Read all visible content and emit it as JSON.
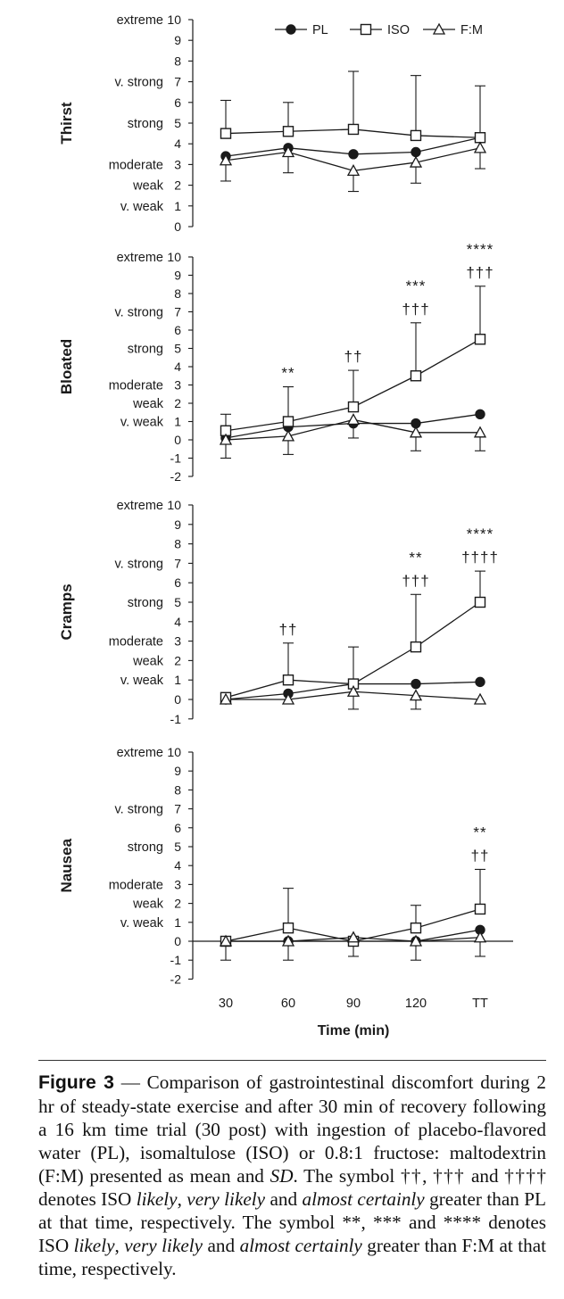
{
  "chart_data": {
    "type": "line",
    "categories": [
      "30",
      "60",
      "90",
      "120",
      "TT"
    ],
    "xlabel": "Time (min)",
    "legend": [
      {
        "key": "PL",
        "label": "PL",
        "marker": "filled-circle"
      },
      {
        "key": "ISO",
        "label": "ISO",
        "marker": "open-square"
      },
      {
        "key": "FM",
        "label": "F:M",
        "marker": "open-triangle"
      }
    ],
    "legend_position": "top",
    "scale_labels": {
      "10": "extreme",
      "7": "v. strong",
      "5": "strong",
      "3": "moderate",
      "2": "weak",
      "1": "v. weak"
    },
    "panels": [
      {
        "ylabel": "Thirst",
        "ylim": [
          0,
          10
        ],
        "series": [
          {
            "key": "PL",
            "values": [
              3.4,
              3.8,
              3.5,
              3.6,
              4.3
            ],
            "sd_upper": [
              0,
              0,
              0,
              0,
              0
            ],
            "sd_lower": [
              0,
              0,
              0,
              0,
              0
            ]
          },
          {
            "key": "ISO",
            "values": [
              4.5,
              4.6,
              4.7,
              4.4,
              4.3
            ],
            "sd_upper": [
              1.6,
              1.4,
              2.8,
              2.9,
              2.5
            ],
            "sd_lower": [
              0,
              0,
              0,
              0,
              0
            ]
          },
          {
            "key": "FM",
            "values": [
              3.2,
              3.6,
              2.7,
              3.1,
              3.8
            ],
            "sd_upper": [
              0,
              0,
              0,
              0,
              0
            ],
            "sd_lower": [
              1.0,
              1.0,
              1.0,
              1.0,
              1.0
            ]
          }
        ],
        "annotations": []
      },
      {
        "ylabel": "Bloated",
        "ylim": [
          -2,
          10
        ],
        "series": [
          {
            "key": "PL",
            "values": [
              0.1,
              0.7,
              0.9,
              0.9,
              1.4
            ],
            "sd_upper": [
              0,
              0,
              0,
              0,
              0
            ],
            "sd_lower": [
              0,
              0,
              0.8,
              0,
              0
            ]
          },
          {
            "key": "ISO",
            "values": [
              0.5,
              1.0,
              1.8,
              3.5,
              5.5
            ],
            "sd_upper": [
              0.9,
              1.9,
              2.0,
              2.9,
              2.9
            ],
            "sd_lower": [
              0,
              0,
              0,
              0,
              0
            ]
          },
          {
            "key": "FM",
            "values": [
              0.0,
              0.2,
              1.1,
              0.4,
              0.4
            ],
            "sd_upper": [
              0,
              0,
              0,
              0,
              0
            ],
            "sd_lower": [
              1.0,
              1.0,
              0,
              1.0,
              1.0
            ]
          }
        ],
        "annotations": [
          {
            "time": "60",
            "lines": [
              "**"
            ]
          },
          {
            "time": "90",
            "lines": [
              "††"
            ]
          },
          {
            "time": "120",
            "lines": [
              "***",
              "†††"
            ]
          },
          {
            "time": "TT",
            "lines": [
              "****",
              "†††"
            ]
          }
        ]
      },
      {
        "ylabel": "Cramps",
        "ylim": [
          -1,
          10
        ],
        "series": [
          {
            "key": "PL",
            "values": [
              0.0,
              0.3,
              0.8,
              0.8,
              0.9
            ],
            "sd_upper": [
              0,
              0,
              0,
              0,
              0
            ],
            "sd_lower": [
              0,
              0,
              0,
              0,
              0
            ]
          },
          {
            "key": "ISO",
            "values": [
              0.1,
              1.0,
              0.8,
              2.7,
              5.0
            ],
            "sd_upper": [
              0.2,
              1.9,
              1.9,
              2.7,
              1.6
            ],
            "sd_lower": [
              0,
              0,
              0,
              0,
              0
            ]
          },
          {
            "key": "FM",
            "values": [
              0.0,
              0.0,
              0.4,
              0.2,
              0.0
            ],
            "sd_upper": [
              0,
              0,
              0,
              0,
              0
            ],
            "sd_lower": [
              0,
              0,
              0.9,
              0.7,
              0
            ]
          }
        ],
        "annotations": [
          {
            "time": "60",
            "lines": [
              "††"
            ]
          },
          {
            "time": "120",
            "lines": [
              "**",
              "†††"
            ]
          },
          {
            "time": "TT",
            "lines": [
              "****",
              "††††"
            ]
          }
        ]
      },
      {
        "ylabel": "Nausea",
        "ylim": [
          -2,
          10
        ],
        "series": [
          {
            "key": "PL",
            "values": [
              0.0,
              0.0,
              0.0,
              0.0,
              0.6
            ],
            "sd_upper": [
              0,
              0,
              0,
              0,
              0
            ],
            "sd_lower": [
              0,
              0,
              0,
              0,
              0
            ]
          },
          {
            "key": "ISO",
            "values": [
              0.0,
              0.7,
              0.0,
              0.7,
              1.7
            ],
            "sd_upper": [
              0,
              2.1,
              0,
              1.2,
              2.1
            ],
            "sd_lower": [
              0,
              0,
              0,
              0,
              0
            ]
          },
          {
            "key": "FM",
            "values": [
              0.0,
              0.0,
              0.2,
              0.0,
              0.2
            ],
            "sd_upper": [
              0,
              0,
              0,
              0,
              0
            ],
            "sd_lower": [
              1.0,
              1.0,
              1.0,
              1.0,
              1.0
            ]
          }
        ],
        "annotations": [
          {
            "time": "TT",
            "lines": [
              "**",
              "††"
            ]
          }
        ]
      }
    ]
  },
  "caption": {
    "label": "Figure 3",
    "dash": " — ",
    "text1": "Comparison of gastrointestinal discomfort during 2 hr of steady-state exercise and after 30 min of recovery following a 16 km time trial (30 post) with ingestion of placebo-flavored water (PL), isomaltulose (ISO) or 0.8:1 fructose: maltodextrin (F:M) presented as mean and ",
    "sd": "SD",
    "text2": ". The symbol ††, ††† and †††† denotes ISO ",
    "likely1": "likely",
    "comma1": ", ",
    "verylikely1": "very likely",
    "and1": " and ",
    "almost1": "almost certainly",
    "text3": " greater than PL at that time, respectively. The symbol **, *** and **** denotes ISO ",
    "likely2": "likely",
    "comma2": ", ",
    "verylikely2": "very likely",
    "and2": " and ",
    "almost2": "almost certainly",
    "text4": " greater than F:M at that time, respectively."
  }
}
